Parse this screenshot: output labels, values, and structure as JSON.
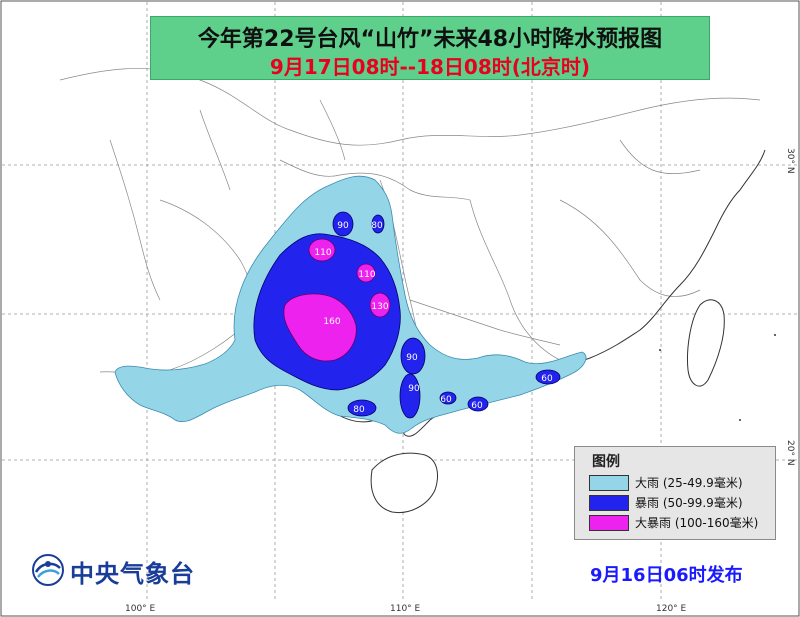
{
  "title": {
    "line1": "今年第22号台风“山竹”未来48小时降水预报图",
    "line2": "9月17日08时--18日08时(北京时)"
  },
  "legend": {
    "title": "图例",
    "items": [
      {
        "label": "大雨 (25-49.9毫米)",
        "color": "#94d6e8"
      },
      {
        "label": "暴雨 (50-99.9毫米)",
        "color": "#2323ee"
      },
      {
        "label": "大暴雨 (100-160毫米)",
        "color": "#ee22ee"
      }
    ]
  },
  "rain_labels": [
    "90",
    "80",
    "110",
    "110",
    "130",
    "160",
    "90",
    "90",
    "80",
    "60",
    "60",
    "60"
  ],
  "organization": "中央气象台",
  "issued": "9月16日06时发布",
  "axes": {
    "lon_100": "100° E",
    "lon_110": "110° E",
    "lon_120": "120° E",
    "lat_30": "30° N",
    "lat_20": "20° N"
  },
  "colors": {
    "land": "#ffffff",
    "sea": "#ffffff",
    "heavy_rain": "#94d6e8",
    "rainstorm": "#2323ee",
    "heavy_rainstorm": "#ee22ee",
    "title_bg": "#5fd08c",
    "subtitle": "#e8001e",
    "issued": "#1a1aff"
  }
}
